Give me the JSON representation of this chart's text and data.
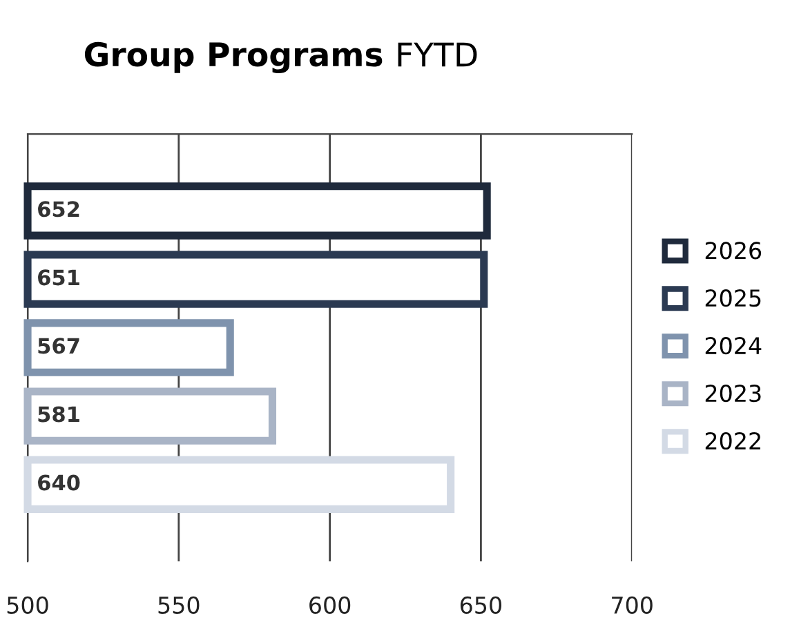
{
  "chart_data": {
    "type": "bar",
    "orientation": "horizontal",
    "title": "Group Programs",
    "subtitle": "FYTD",
    "categories": [
      null
    ],
    "series": [
      {
        "name": "2026",
        "color": "#1f2a3c",
        "values": [
          652
        ]
      },
      {
        "name": "2025",
        "color": "#2b3a52",
        "values": [
          651
        ]
      },
      {
        "name": "2024",
        "color": "#7f93ad",
        "values": [
          567
        ]
      },
      {
        "name": "2023",
        "color": "#a9b4c6",
        "values": [
          581
        ]
      },
      {
        "name": "2022",
        "color": "#d3dae5",
        "values": [
          640
        ]
      }
    ],
    "xlim": [
      500,
      700
    ],
    "xticks": [
      500,
      550,
      600,
      650,
      700
    ],
    "grid": "x",
    "legend": "right",
    "data_labels": true
  }
}
